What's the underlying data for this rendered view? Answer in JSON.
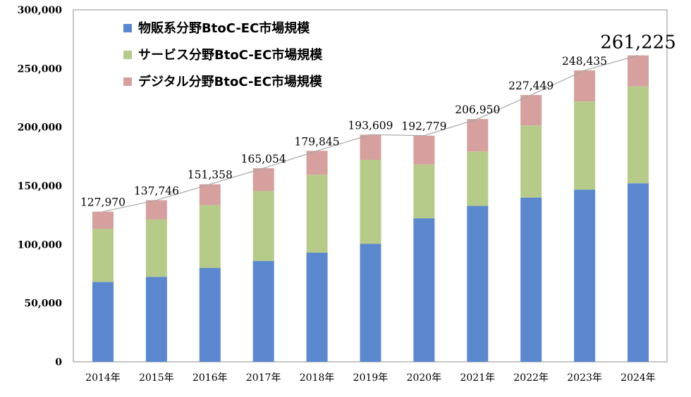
{
  "chart_data": {
    "type": "bar",
    "stacked": true,
    "categories": [
      "2014年",
      "2015年",
      "2016年",
      "2017年",
      "2018年",
      "2019年",
      "2020年",
      "2021年",
      "2022年",
      "2023年",
      "2024年"
    ],
    "series": [
      {
        "name": "物販系分野BtoC-EC市場規模",
        "color": "#5b87cf",
        "values": [
          68043,
          72398,
          80043,
          86008,
          92992,
          100515,
          122333,
          132865,
          139997,
          146760,
          152194
        ]
      },
      {
        "name": "サービス分野BtoC-EC市場規模",
        "color": "#b6cb8a",
        "values": [
          45286,
          49014,
          53532,
          59568,
          66471,
          71672,
          45832,
          46424,
          61477,
          75169,
          82508
        ]
      },
      {
        "name": "デジタル分野BtoC-EC市場規模",
        "color": "#d6a09e",
        "values": [
          14641,
          16334,
          17783,
          19478,
          20382,
          21422,
          24614,
          27661,
          25975,
          26506,
          26523
        ]
      }
    ],
    "totals": [
      127970,
      137746,
      151358,
      165054,
      179845,
      193609,
      192779,
      206950,
      227449,
      248435,
      261225
    ],
    "total_labels": [
      "127,970",
      "137,746",
      "151,358",
      "165,054",
      "179,845",
      "193,609",
      "192,779",
      "206,950",
      "227,449",
      "248,435",
      "261,225"
    ],
    "y_ticks": [
      "0",
      "50,000",
      "100,000",
      "150,000",
      "200,000",
      "250,000",
      "300,000"
    ],
    "ylim": [
      0,
      300000
    ],
    "legend_position": "top-left",
    "grid": false,
    "total_line": true
  }
}
